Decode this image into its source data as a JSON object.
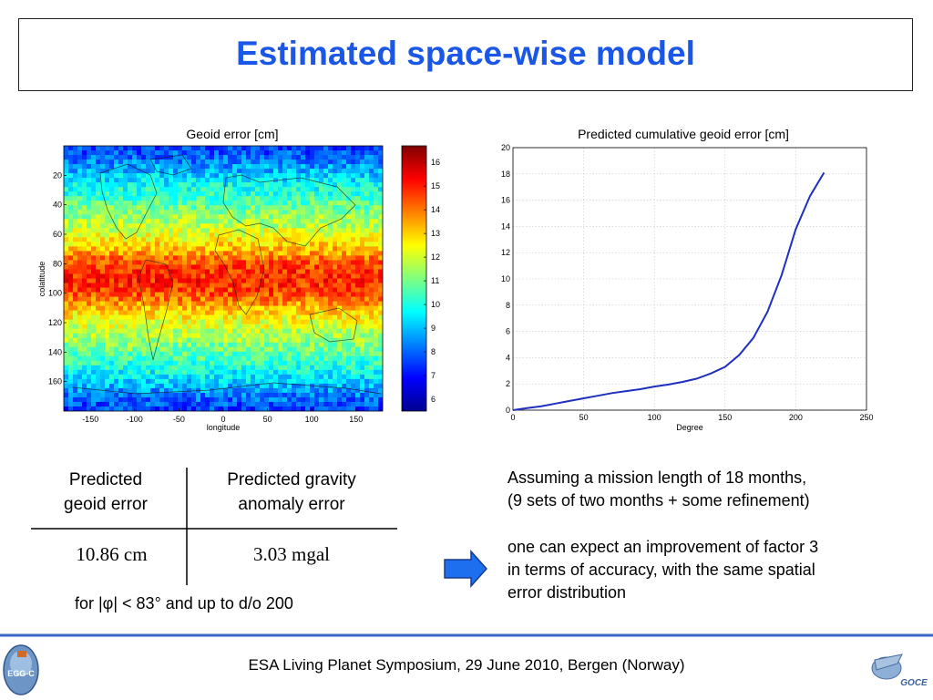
{
  "slide": {
    "title": "Estimated space-wise model",
    "footer": "ESA Living Planet Symposium, 29 June 2010, Bergen (Norway)",
    "logo_left_text": "EGG-C",
    "logo_right_text": "GOCE"
  },
  "map": {
    "title": "Geoid error [cm]",
    "xlabel": "longitude",
    "ylabel": "colatitude",
    "x_ticks": [
      "-150",
      "-100",
      "-50",
      "0",
      "50",
      "100",
      "150"
    ],
    "y_ticks": [
      "20",
      "40",
      "60",
      "80",
      "100",
      "120",
      "140",
      "160"
    ],
    "colorbar_ticks": [
      "16",
      "15",
      "14",
      "13",
      "12",
      "11",
      "10",
      "9",
      "8",
      "7",
      "6"
    ]
  },
  "table": {
    "col1_header": [
      "Predicted",
      "geoid error"
    ],
    "col2_header": [
      "Predicted gravity",
      "anomaly error"
    ],
    "col1_value": "10.86 cm",
    "col2_value": "3.03 mgal",
    "note": "for |φ| < 83° and up to d/o 200"
  },
  "text": {
    "para1": [
      "Assuming a mission length of 18 months,",
      "(9 sets of two months + some refinement)"
    ],
    "para2": [
      "one can expect an improvement of factor 3",
      "in terms of accuracy, with the same spatial",
      "error distribution"
    ]
  },
  "colors": {
    "title": "#1a57e6",
    "curve": "#1f2fbf",
    "arrow_fill": "#1e6ff0",
    "arrow_stroke": "#1d3a8c",
    "footer_line": "#3a66c8"
  },
  "chart_data": [
    {
      "type": "heatmap",
      "title": "Geoid error [cm]",
      "xlabel": "longitude",
      "ylabel": "colatitude",
      "xlim": [
        -180,
        180
      ],
      "ylim": [
        0,
        180
      ],
      "y_reversed": true,
      "colorbar_range": [
        5.5,
        16.7
      ],
      "colormap": "jet",
      "profile_colatitude": [
        0,
        10,
        20,
        30,
        40,
        50,
        60,
        70,
        80,
        90,
        100,
        110,
        120,
        130,
        140,
        150,
        160,
        170,
        180
      ],
      "profile_error_cm": [
        7.5,
        8.2,
        9.2,
        10.0,
        10.8,
        11.5,
        12.2,
        13.2,
        14.5,
        15.0,
        14.5,
        13.2,
        12.2,
        11.5,
        10.8,
        10.0,
        9.2,
        8.2,
        7.5
      ]
    },
    {
      "type": "line",
      "title": "Predicted cumulative geoid error [cm]",
      "xlabel": "Degree",
      "ylabel": "",
      "xlim": [
        0,
        250
      ],
      "ylim": [
        0,
        20
      ],
      "x_ticks": [
        0,
        50,
        100,
        150,
        200,
        250
      ],
      "y_ticks": [
        0,
        2,
        4,
        6,
        8,
        10,
        12,
        14,
        16,
        18,
        20
      ],
      "grid": true,
      "series": [
        {
          "x": [
            0,
            10,
            20,
            30,
            40,
            50,
            60,
            70,
            80,
            90,
            100,
            110,
            120,
            130,
            140,
            150,
            160,
            170,
            180,
            190,
            200,
            210,
            220
          ],
          "values": [
            0.0,
            0.15,
            0.3,
            0.5,
            0.7,
            0.9,
            1.1,
            1.3,
            1.45,
            1.6,
            1.8,
            1.95,
            2.15,
            2.4,
            2.8,
            3.3,
            4.2,
            5.5,
            7.5,
            10.3,
            13.8,
            16.3,
            18.1
          ]
        }
      ]
    }
  ]
}
